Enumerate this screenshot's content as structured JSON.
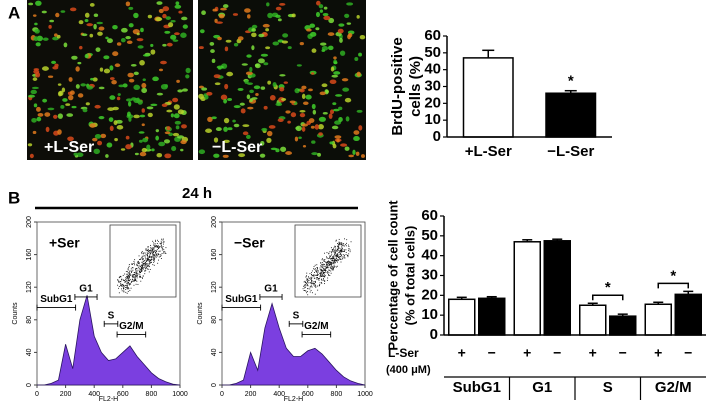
{
  "panel_labels": [
    "A",
    "B"
  ],
  "time_label": "24 h",
  "images": [
    {
      "label": "+L-Ser"
    },
    {
      "label": "−L-Ser"
    }
  ],
  "chart_data": [
    {
      "type": "bar",
      "ylabel": [
        "BrdU-positive",
        "cells (%)"
      ],
      "categories": [
        "+L-Ser",
        "−L-Ser"
      ],
      "values": [
        47,
        26
      ],
      "errors": [
        4.5,
        1.5
      ],
      "colors": [
        "#ffffff",
        "#000000"
      ],
      "ylim": [
        0,
        60
      ],
      "yticks": [
        0,
        10,
        20,
        30,
        40,
        50,
        60
      ],
      "annotations": [
        {
          "text": "*",
          "category": 1
        }
      ]
    },
    {
      "type": "flow",
      "label": "+Ser",
      "xlabel": "FL2-H",
      "ylabel": "Counts",
      "x": [
        0,
        50,
        100,
        150,
        200,
        250,
        300,
        350,
        400,
        450,
        500,
        550,
        600,
        650,
        700,
        750,
        800,
        850,
        900,
        950,
        1000
      ],
      "values": [
        0,
        0,
        2,
        6,
        50,
        20,
        80,
        110,
        60,
        40,
        30,
        32,
        40,
        48,
        35,
        25,
        15,
        8,
        4,
        1,
        0
      ],
      "color": "#7b3fe0",
      "xlim": [
        0,
        1000
      ],
      "ylim": [
        0,
        200
      ],
      "xticks": [
        0,
        200,
        400,
        600,
        800,
        1000
      ],
      "yticks": [
        0,
        40,
        80,
        120,
        160,
        200
      ],
      "gates": [
        {
          "name": "SubG1",
          "range": [
            0,
            270
          ],
          "level": 95
        },
        {
          "name": "G1",
          "range": [
            265,
            420
          ],
          "level": 108
        },
        {
          "name": "S",
          "range": [
            470,
            565
          ],
          "level": 75
        },
        {
          "name": "G2/M",
          "range": [
            560,
            760
          ],
          "level": 62
        }
      ]
    },
    {
      "type": "flow",
      "label": "−Ser",
      "xlabel": "FL2-H",
      "ylabel": "Counts",
      "x": [
        0,
        50,
        100,
        150,
        200,
        250,
        300,
        350,
        400,
        450,
        500,
        550,
        600,
        650,
        700,
        750,
        800,
        850,
        900,
        950,
        1000
      ],
      "values": [
        0,
        0,
        2,
        6,
        40,
        18,
        70,
        100,
        70,
        45,
        35,
        35,
        42,
        45,
        38,
        28,
        18,
        10,
        5,
        2,
        0
      ],
      "color": "#7b3fe0",
      "xlim": [
        0,
        1000
      ],
      "ylim": [
        0,
        200
      ],
      "xticks": [
        0,
        200,
        400,
        600,
        800,
        1000
      ],
      "yticks": [
        0,
        40,
        80,
        120,
        160,
        200
      ],
      "gates": [
        {
          "name": "SubG1",
          "range": [
            0,
            270
          ],
          "level": 95
        },
        {
          "name": "G1",
          "range": [
            265,
            420
          ],
          "level": 108
        },
        {
          "name": "S",
          "range": [
            470,
            565
          ],
          "level": 75
        },
        {
          "name": "G2/M",
          "range": [
            560,
            760
          ],
          "level": 62
        }
      ]
    },
    {
      "type": "grouped-bar",
      "ylabel": [
        "Percentage of cell count",
        "(% of total cells)"
      ],
      "categories": [
        "SubG1",
        "G1",
        "S",
        "G2/M"
      ],
      "series": [
        {
          "color": "#ffffff",
          "values": [
            18,
            47,
            15,
            15.5
          ],
          "errors": [
            1,
            1,
            1,
            1
          ]
        },
        {
          "color": "#000000",
          "values": [
            18.5,
            47.5,
            9.5,
            20.5
          ],
          "errors": [
            0.8,
            0.8,
            1,
            1.5
          ]
        }
      ],
      "treatment_label": "L-Ser",
      "dose_label": "(400 μM)",
      "treatment_signs": [
        "+",
        "−"
      ],
      "ylim": [
        0,
        60
      ],
      "yticks": [
        0,
        10,
        20,
        30,
        40,
        50,
        60
      ],
      "annotations": [
        {
          "text": "*",
          "category": 2
        },
        {
          "text": "*",
          "category": 3
        }
      ]
    }
  ]
}
